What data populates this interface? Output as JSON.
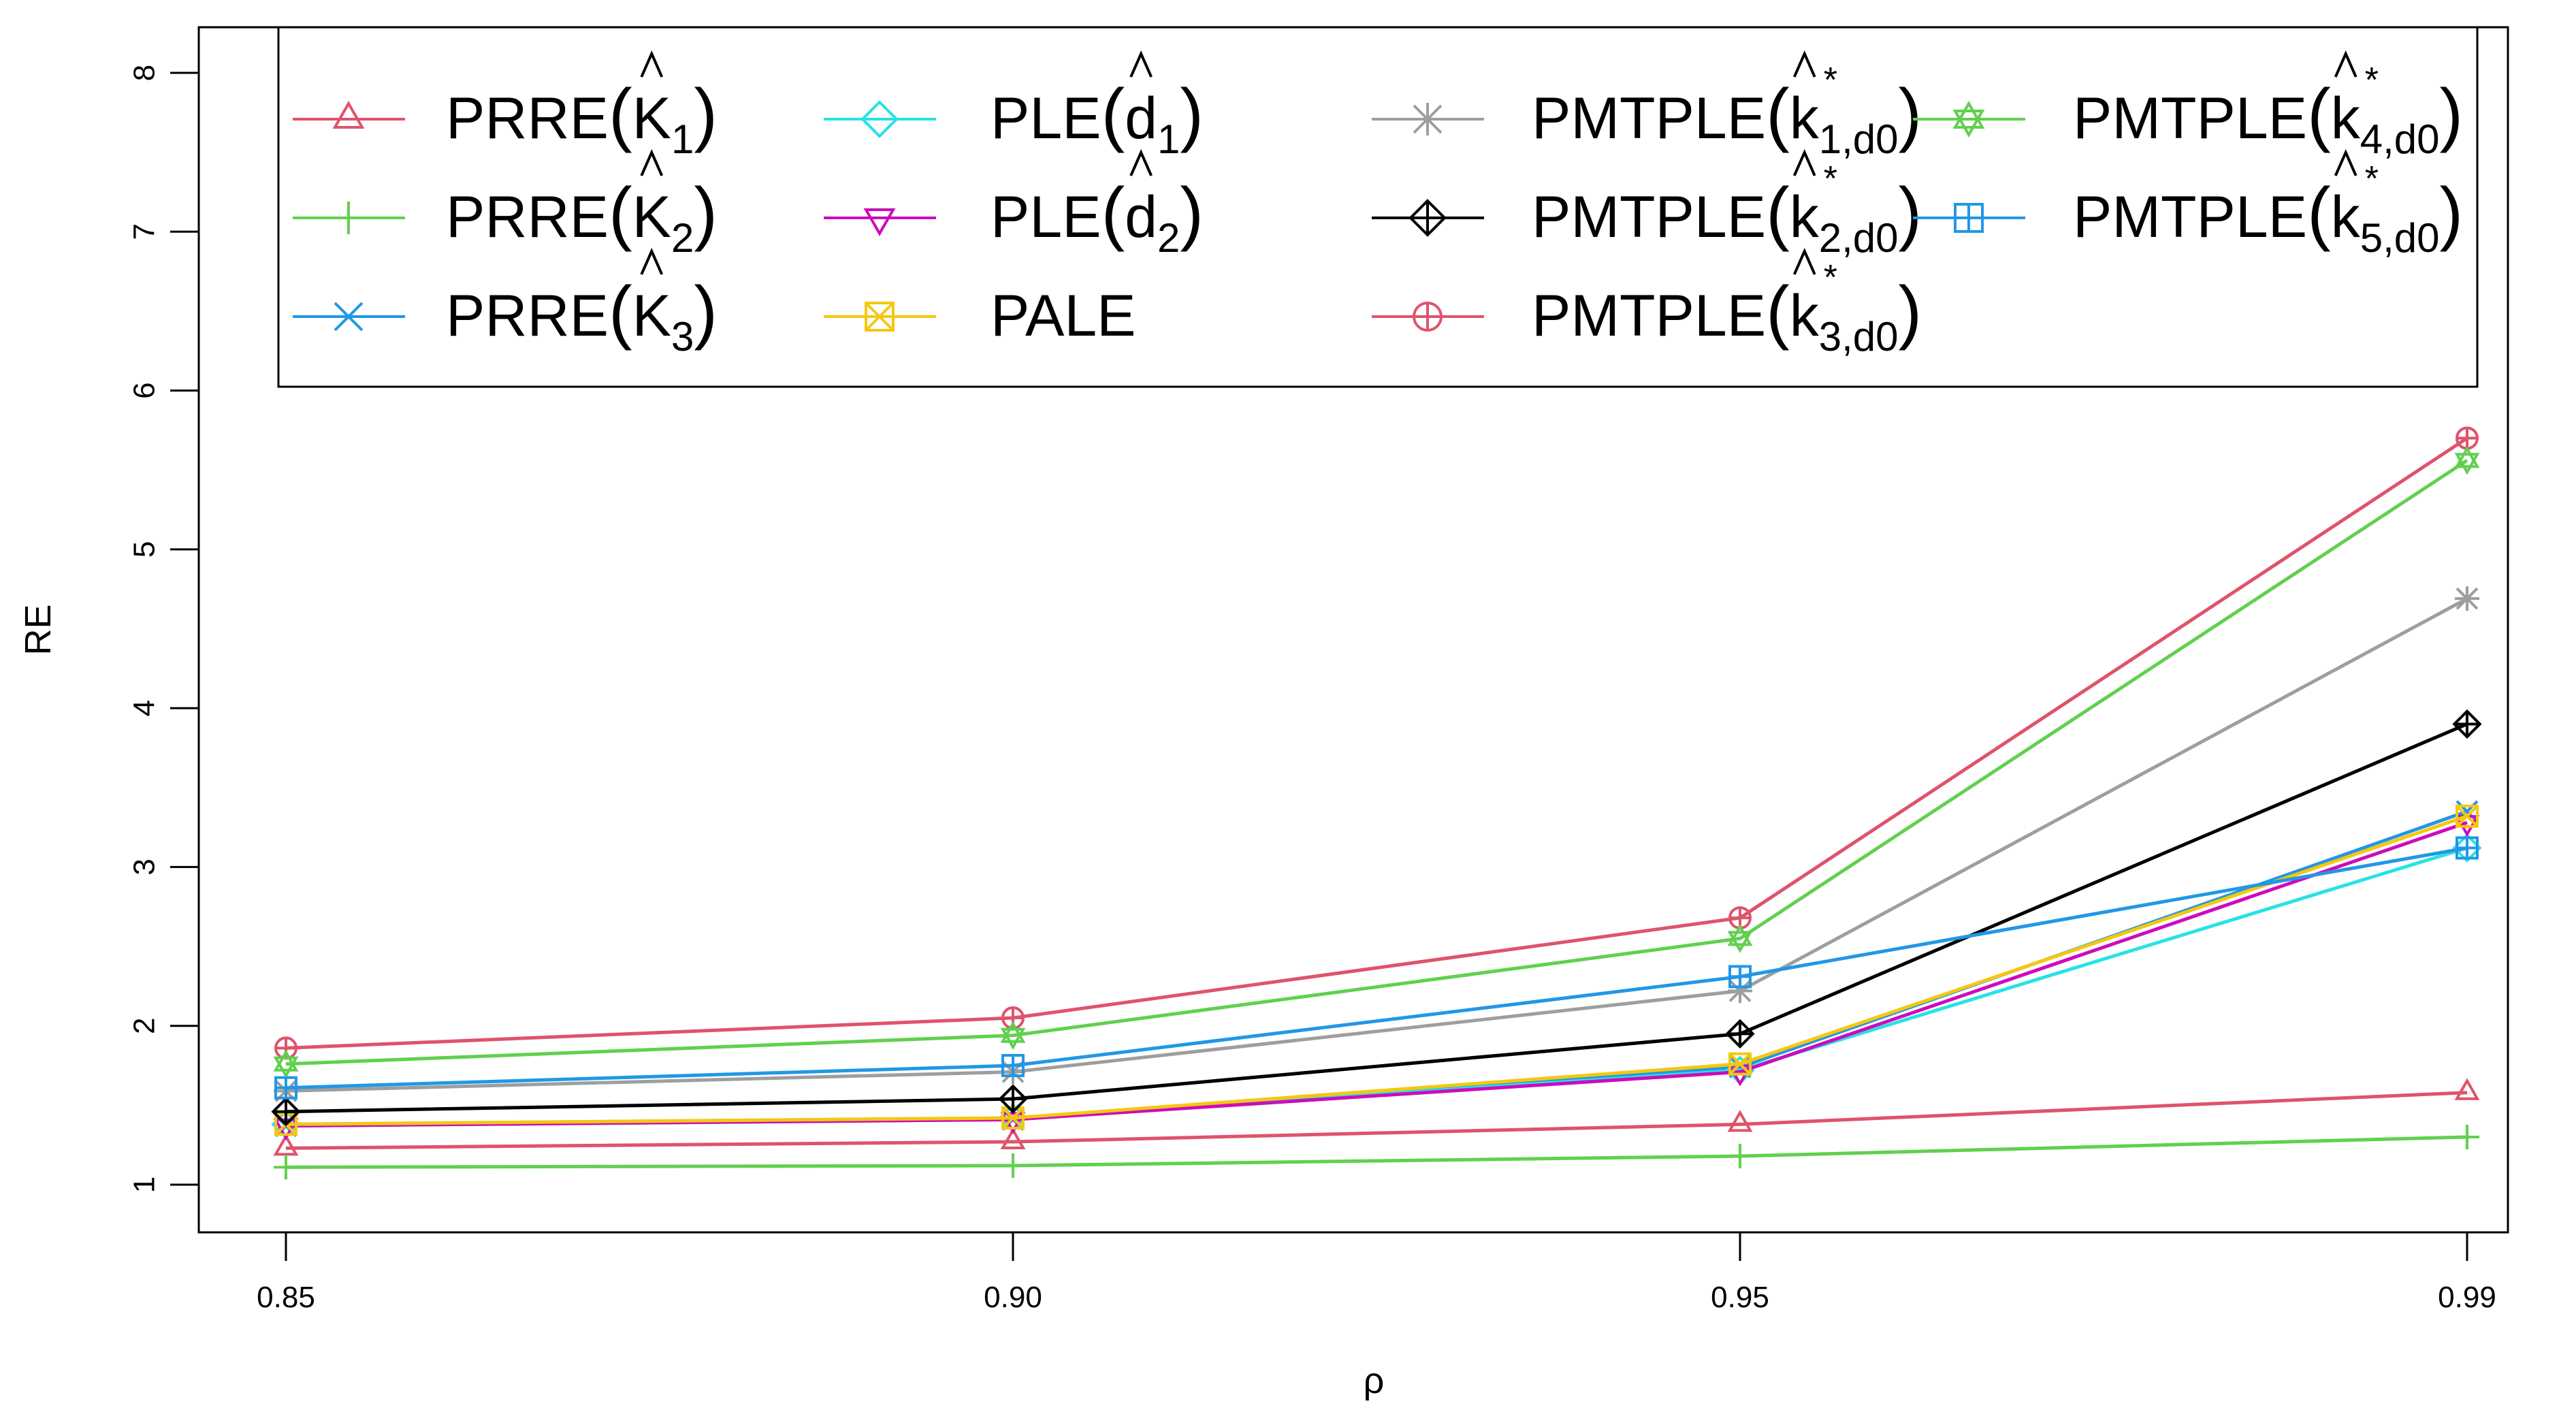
{
  "chart_data": {
    "type": "line",
    "title": "",
    "xlabel": "ρ",
    "ylabel": "RE",
    "x": [
      "0.85",
      "0.90",
      "0.95",
      "0.99"
    ],
    "ylim": [
      1,
      8
    ],
    "yticks": [
      "1",
      "2",
      "3",
      "4",
      "5",
      "6",
      "7",
      "8"
    ],
    "grid": false,
    "legend_position": "top-left",
    "series": [
      {
        "name": "PRRE(K̂1)",
        "base": "PRRE",
        "hat": "K",
        "sub": "1",
        "star": false,
        "color": "#DF536B",
        "marker": "triangle-up",
        "values": [
          1.23,
          1.27,
          1.38,
          1.58
        ]
      },
      {
        "name": "PRRE(K̂2)",
        "base": "PRRE",
        "hat": "K",
        "sub": "2",
        "star": false,
        "color": "#61D04F",
        "marker": "plus",
        "values": [
          1.11,
          1.12,
          1.18,
          1.3
        ]
      },
      {
        "name": "PRRE(K̂3)",
        "base": "PRRE",
        "hat": "K",
        "sub": "3",
        "star": false,
        "color": "#2297E6",
        "marker": "cross",
        "values": [
          1.37,
          1.41,
          1.74,
          3.35
        ]
      },
      {
        "name": "PLE(d̂1)",
        "base": "PLE",
        "hat": "d",
        "sub": "1",
        "star": false,
        "color": "#28E2E5",
        "marker": "diamond",
        "values": [
          1.38,
          1.42,
          1.72,
          3.12
        ]
      },
      {
        "name": "PLE(d̂2)",
        "base": "PLE",
        "hat": "d",
        "sub": "2",
        "star": false,
        "color": "#CD0BBC",
        "marker": "triangle-down",
        "values": [
          1.37,
          1.41,
          1.71,
          3.28
        ]
      },
      {
        "name": "PALE",
        "base": "PALE",
        "hat": "",
        "sub": "",
        "star": false,
        "color": "#F5C710",
        "marker": "square-x",
        "values": [
          1.38,
          1.42,
          1.76,
          3.32
        ]
      },
      {
        "name": "PMTPLE(k̂*1,d0)",
        "base": "PMTPLE",
        "hat": "k",
        "sub": "1,d0",
        "star": true,
        "color": "#9E9E9E",
        "marker": "asterisk",
        "values": [
          1.59,
          1.71,
          2.22,
          4.69
        ]
      },
      {
        "name": "PMTPLE(k̂*2,d0)",
        "base": "PMTPLE",
        "hat": "k",
        "sub": "2,d0",
        "star": true,
        "color": "#000000",
        "marker": "diamond-plus",
        "values": [
          1.46,
          1.54,
          1.95,
          3.9
        ]
      },
      {
        "name": "PMTPLE(k̂*3,d0)",
        "base": "PMTPLE",
        "hat": "k",
        "sub": "3,d0",
        "star": true,
        "color": "#DF536B",
        "marker": "circle-plus",
        "values": [
          1.86,
          2.05,
          2.68,
          5.7
        ]
      },
      {
        "name": "PMTPLE(k̂*4,d0)",
        "base": "PMTPLE",
        "hat": "k",
        "sub": "4,d0",
        "star": true,
        "color": "#61D04F",
        "marker": "star-of-david",
        "values": [
          1.76,
          1.94,
          2.55,
          5.56
        ]
      },
      {
        "name": "PMTPLE(k̂*5,d0)",
        "base": "PMTPLE",
        "hat": "k",
        "sub": "5,d0",
        "star": true,
        "color": "#2297E6",
        "marker": "square-plus",
        "values": [
          1.61,
          1.75,
          2.31,
          3.12
        ]
      }
    ]
  }
}
